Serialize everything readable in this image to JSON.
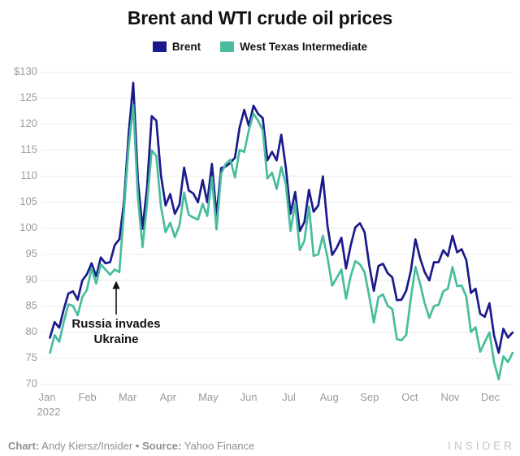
{
  "title": "Brent and WTI crude oil prices",
  "legend": {
    "items": [
      {
        "label": "Brent",
        "color": "#1a1a8c"
      },
      {
        "label": "West Texas Intermediate",
        "color": "#47bd9d"
      }
    ]
  },
  "annotation": {
    "line1": "Russia invades",
    "line2": "Ukraine"
  },
  "footer": {
    "chart_label": "Chart:",
    "chart_value": " Andy Kiersz/Insider ",
    "bullet": "•",
    "source_label": " Source:",
    "source_value": " Yahoo Finance",
    "brand": "INSIDER"
  },
  "colors": {
    "background": "#ffffff",
    "ink": "#121212",
    "axis_label": "#9a9a9a",
    "gridline": "#e9e9e9",
    "footer_text": "#8f8f8f",
    "brand": "#c3c3c3",
    "brent": "#1a1a8c",
    "wti": "#47bd9d"
  },
  "chart_data": {
    "type": "line",
    "title": "Brent and WTI crude oil prices",
    "xlabel": "",
    "ylabel": "",
    "ylim": [
      70,
      130
    ],
    "grid": true,
    "legend_position": "top-center",
    "x_tick_labels": [
      "Jan",
      "Feb",
      "Mar",
      "Apr",
      "May",
      "Jun",
      "Jul",
      "Aug",
      "Sep",
      "Oct",
      "Nov",
      "Dec"
    ],
    "x_sub_label": "2022",
    "y_ticks": [
      70,
      75,
      80,
      85,
      90,
      95,
      100,
      105,
      110,
      115,
      120,
      125,
      130
    ],
    "y_tick_labels": [
      "70",
      "75",
      "80",
      "85",
      "90",
      "95",
      "100",
      "105",
      "110",
      "115",
      "120",
      "125",
      "$130"
    ],
    "x_start_month": 0.07,
    "x_end_month": 11.55,
    "x_unit": "months since Jan 1 2022, points evenly spaced Jan 3 - Dec 20",
    "annotation": {
      "text": "Russia invades Ukraine",
      "arrow_points_to_month": 1.72,
      "arrow_points_to_value": 91
    },
    "series": [
      {
        "name": "Brent",
        "color": "#1a1a8c",
        "values": [
          79.0,
          82.0,
          80.9,
          84.5,
          87.5,
          87.9,
          86.3,
          90.0,
          91.2,
          93.3,
          90.8,
          94.4,
          93.3,
          93.5,
          96.8,
          97.9,
          105.0,
          118.1,
          128.0,
          109.3,
          99.9,
          107.9,
          121.6,
          120.7,
          110.2,
          104.4,
          106.6,
          102.8,
          104.6,
          111.7,
          107.3,
          106.7,
          105.0,
          109.3,
          105.0,
          112.4,
          102.5,
          111.6,
          111.9,
          112.6,
          113.6,
          119.4,
          122.8,
          119.7,
          123.6,
          122.0,
          121.2,
          113.1,
          114.7,
          113.1,
          118.0,
          111.6,
          102.8,
          107.0,
          99.5,
          101.2,
          107.4,
          103.2,
          104.4,
          110.0,
          100.5,
          94.9,
          96.3,
          98.2,
          92.3,
          96.7,
          100.2,
          101.0,
          99.3,
          93.0,
          88.0,
          92.8,
          93.2,
          91.4,
          90.6,
          86.2,
          86.3,
          88.0,
          91.8,
          97.9,
          94.3,
          91.6,
          90.0,
          93.5,
          93.5,
          95.8,
          94.7,
          98.6,
          95.4,
          96.0,
          93.9,
          87.6,
          88.4,
          83.6,
          83.0,
          85.6,
          79.4,
          76.1,
          80.7,
          79.0,
          80.0
        ]
      },
      {
        "name": "West Texas Intermediate",
        "color": "#47bd9d",
        "values": [
          76.1,
          79.5,
          78.2,
          82.1,
          85.4,
          85.1,
          83.3,
          86.8,
          88.2,
          92.3,
          89.4,
          93.1,
          92.1,
          91.1,
          92.1,
          91.6,
          103.4,
          115.7,
          123.7,
          106.0,
          96.4,
          104.7,
          115.0,
          113.9,
          104.2,
          99.3,
          101.1,
          98.3,
          100.6,
          106.9,
          102.6,
          102.1,
          101.7,
          104.7,
          102.4,
          109.8,
          99.8,
          110.5,
          112.4,
          113.2,
          109.8,
          115.1,
          114.7,
          118.9,
          122.1,
          120.7,
          118.9,
          109.6,
          110.7,
          107.6,
          111.8,
          108.4,
          99.5,
          104.8,
          95.8,
          97.6,
          104.2,
          94.7,
          95.0,
          98.6,
          94.4,
          89.0,
          90.5,
          92.1,
          86.5,
          90.8,
          93.7,
          93.1,
          91.6,
          87.0,
          81.9,
          86.8,
          87.3,
          85.1,
          84.5,
          78.7,
          78.5,
          79.5,
          86.5,
          92.6,
          89.4,
          85.6,
          82.8,
          85.1,
          85.3,
          87.9,
          88.4,
          92.6,
          88.9,
          89.0,
          86.9,
          80.1,
          81.0,
          76.3,
          78.2,
          80.0,
          74.3,
          71.0,
          75.4,
          74.3,
          76.1
        ]
      }
    ]
  }
}
